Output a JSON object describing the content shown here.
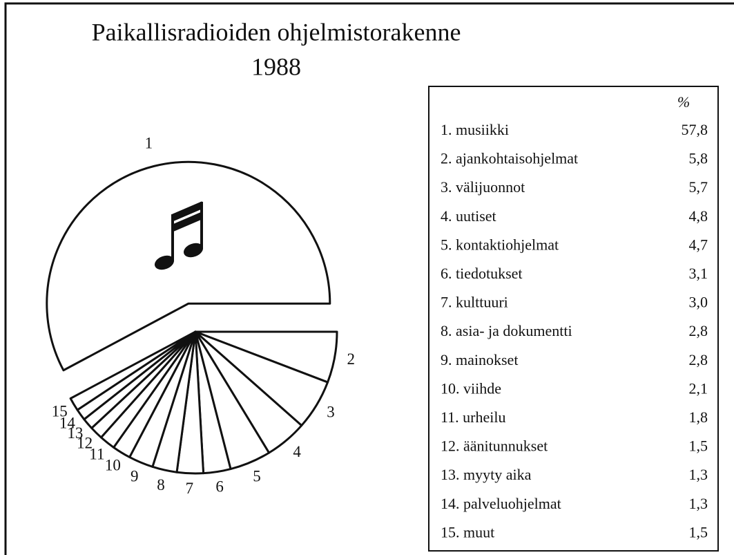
{
  "chart_data": {
    "type": "pie",
    "title": "Paikallisradioiden ohjelmistorakenne",
    "subtitle": "1988",
    "legend_header": "%",
    "slice_labels": [
      "1",
      "2",
      "3",
      "4",
      "5",
      "6",
      "7",
      "8",
      "9",
      "10",
      "11",
      "12",
      "13",
      "14",
      "15"
    ],
    "categories": [
      "1. musiikki",
      "2. ajankohtaisohjelmat",
      "3. välijuonnot",
      "4. uutiset",
      "5. kontaktiohjelmat",
      "6. tiedotukset",
      "7. kulttuuri",
      "8. asia- ja dokumentti",
      "9. mainokset",
      "10. viihde",
      "11. urheilu",
      "12. äänitunnukset",
      "13. myyty aika",
      "14. palveluohjelmat",
      "15. muut"
    ],
    "values": [
      57.8,
      5.8,
      5.7,
      4.8,
      4.7,
      3.1,
      3.0,
      2.8,
      2.8,
      2.1,
      1.8,
      1.5,
      1.3,
      1.3,
      1.5
    ],
    "value_labels": [
      "57,8",
      "5,8",
      "5,7",
      "4,8",
      "4,7",
      "3,1",
      "3,0",
      "2,8",
      "2,8",
      "2,1",
      "1,8",
      "1,5",
      "1,3",
      "1,3",
      "1,5"
    ],
    "exploded": [
      0
    ],
    "color": "#ffffff",
    "edge_color": "#111111"
  }
}
